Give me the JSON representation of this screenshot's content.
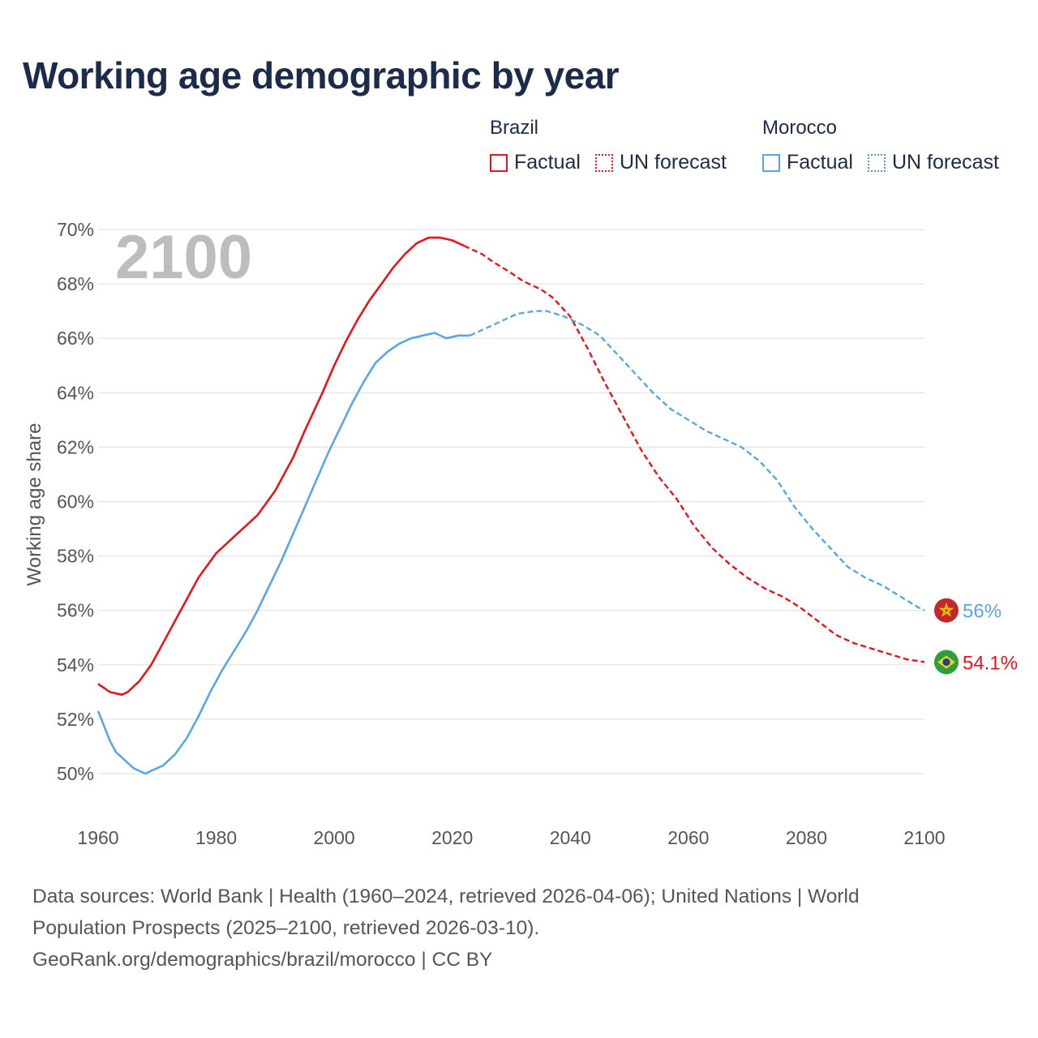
{
  "title": "Working age demographic by year",
  "legend": {
    "brazil": {
      "country": "Brazil",
      "factual": "Factual",
      "forecast": "UN forecast"
    },
    "morocco": {
      "country": "Morocco",
      "factual": "Factual",
      "forecast": "UN forecast"
    }
  },
  "year_overlay": "2100",
  "colors": {
    "brazil": "#e8141b",
    "morocco": "#5aa5e6",
    "morocco_legend_forecast": "#4ba0b5",
    "grid": "#e3e3e3",
    "tick_text": "#555555",
    "overlay": "#bdbdbd"
  },
  "chart_data": {
    "type": "line",
    "title": "Working age demographic by year",
    "xlabel": "",
    "ylabel": "Working age share",
    "xlim": [
      1960,
      2100
    ],
    "ylim": [
      49,
      71
    ],
    "x_ticks": [
      1960,
      1980,
      2000,
      2020,
      2040,
      2060,
      2080,
      2100
    ],
    "x_tick_labels": [
      "1960",
      "1980",
      "2000",
      "2020",
      "2040",
      "2060",
      "2080",
      "2100"
    ],
    "y_ticks": [
      50,
      52,
      54,
      56,
      58,
      60,
      62,
      64,
      66,
      68,
      70
    ],
    "y_tick_labels": [
      "50%",
      "52%",
      "54%",
      "56%",
      "58%",
      "60%",
      "62%",
      "64%",
      "66%",
      "68%",
      "70%"
    ],
    "grid": true,
    "legend_position": "top-right",
    "factual_end_year": 2024,
    "series": [
      {
        "name": "Brazil",
        "color_key": "brazil",
        "end_label": "54.1%",
        "flag": "brazil",
        "x": [
          1960,
          1962,
          1964,
          1965,
          1967,
          1969,
          1971,
          1973,
          1975,
          1977,
          1979,
          1980,
          1983,
          1987,
          1990,
          1993,
          1995,
          1998,
          2000,
          2002,
          2004,
          2006,
          2008,
          2010,
          2012,
          2014,
          2016,
          2018,
          2020,
          2022,
          2025,
          2027,
          2030,
          2032,
          2035,
          2037,
          2040,
          2043,
          2046,
          2049,
          2052,
          2055,
          2058,
          2061,
          2064,
          2067,
          2070,
          2073,
          2076,
          2079,
          2082,
          2085,
          2088,
          2091,
          2094,
          2097,
          2100
        ],
        "values": [
          53.3,
          53.0,
          52.9,
          53.0,
          53.4,
          54.0,
          54.8,
          55.6,
          56.4,
          57.2,
          57.8,
          58.1,
          58.7,
          59.5,
          60.4,
          61.6,
          62.6,
          64.0,
          65.0,
          65.9,
          66.7,
          67.4,
          68.0,
          68.6,
          69.1,
          69.5,
          69.7,
          69.7,
          69.6,
          69.4,
          69.1,
          68.8,
          68.4,
          68.1,
          67.8,
          67.5,
          66.8,
          65.6,
          64.3,
          63.1,
          61.9,
          60.9,
          60.1,
          59.1,
          58.3,
          57.7,
          57.2,
          56.8,
          56.5,
          56.1,
          55.6,
          55.1,
          54.8,
          54.6,
          54.4,
          54.2,
          54.1
        ]
      },
      {
        "name": "Morocco",
        "color_key": "morocco",
        "end_label": "56%",
        "flag": "morocco",
        "x": [
          1960,
          1962,
          1963,
          1965,
          1966,
          1968,
          1969,
          1971,
          1973,
          1975,
          1977,
          1979,
          1981,
          1983,
          1985,
          1987,
          1989,
          1991,
          1993,
          1995,
          1997,
          1999,
          2001,
          2003,
          2005,
          2007,
          2009,
          2011,
          2013,
          2015,
          2017,
          2019,
          2021,
          2023,
          2026,
          2029,
          2031,
          2034,
          2036,
          2039,
          2042,
          2045,
          2048,
          2051,
          2054,
          2057,
          2060,
          2063,
          2066,
          2069,
          2072,
          2075,
          2078,
          2081,
          2084,
          2087,
          2090,
          2093,
          2096,
          2099,
          2100
        ],
        "values": [
          52.3,
          51.2,
          50.8,
          50.4,
          50.2,
          50.0,
          50.1,
          50.3,
          50.7,
          51.3,
          52.1,
          53.0,
          53.8,
          54.5,
          55.2,
          56.0,
          56.9,
          57.8,
          58.8,
          59.8,
          60.8,
          61.8,
          62.7,
          63.6,
          64.4,
          65.1,
          65.5,
          65.8,
          66.0,
          66.1,
          66.2,
          66.0,
          66.1,
          66.1,
          66.4,
          66.7,
          66.9,
          67.0,
          67.0,
          66.8,
          66.5,
          66.1,
          65.4,
          64.7,
          64.0,
          63.4,
          63.0,
          62.6,
          62.3,
          62.0,
          61.5,
          60.8,
          59.8,
          59.0,
          58.3,
          57.6,
          57.2,
          56.9,
          56.5,
          56.1,
          56.0
        ]
      }
    ]
  },
  "footer": {
    "line1": "Data sources: World Bank | Health (1960–2024, retrieved 2026-04-06); United Nations | World",
    "line2": "Population Prospects (2025–2100, retrieved 2026-03-10).",
    "line3": "GeoRank.org/demographics/brazil/morocco | CC BY"
  }
}
